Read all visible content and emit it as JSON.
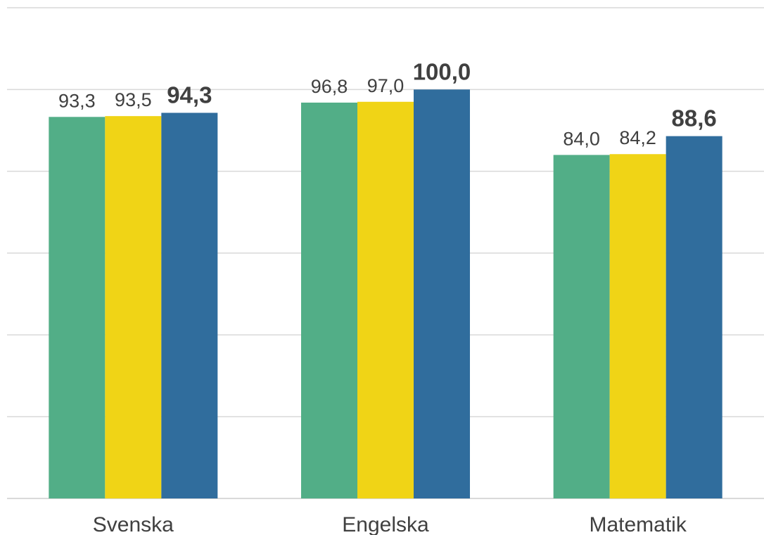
{
  "chart_data": {
    "type": "bar",
    "categories": [
      "Svenska",
      "Engelska",
      "Matematik"
    ],
    "series": [
      {
        "values": [
          93.3,
          96.8,
          84.0
        ],
        "labels": [
          "93,3",
          "96,8",
          "84,0"
        ],
        "color": "#52ae87",
        "label_bold": false
      },
      {
        "values": [
          93.5,
          97.0,
          84.2
        ],
        "labels": [
          "93,5",
          "97,0",
          "84,2"
        ],
        "color": "#f0d416",
        "label_bold": false
      },
      {
        "values": [
          94.3,
          100.0,
          88.6
        ],
        "labels": [
          "94,3",
          "100,0",
          "88,6"
        ],
        "color": "#306d9d",
        "label_bold": true
      }
    ],
    "ylim": [
      0,
      120
    ],
    "grid_step": 20,
    "grid": true,
    "legend": "none"
  }
}
